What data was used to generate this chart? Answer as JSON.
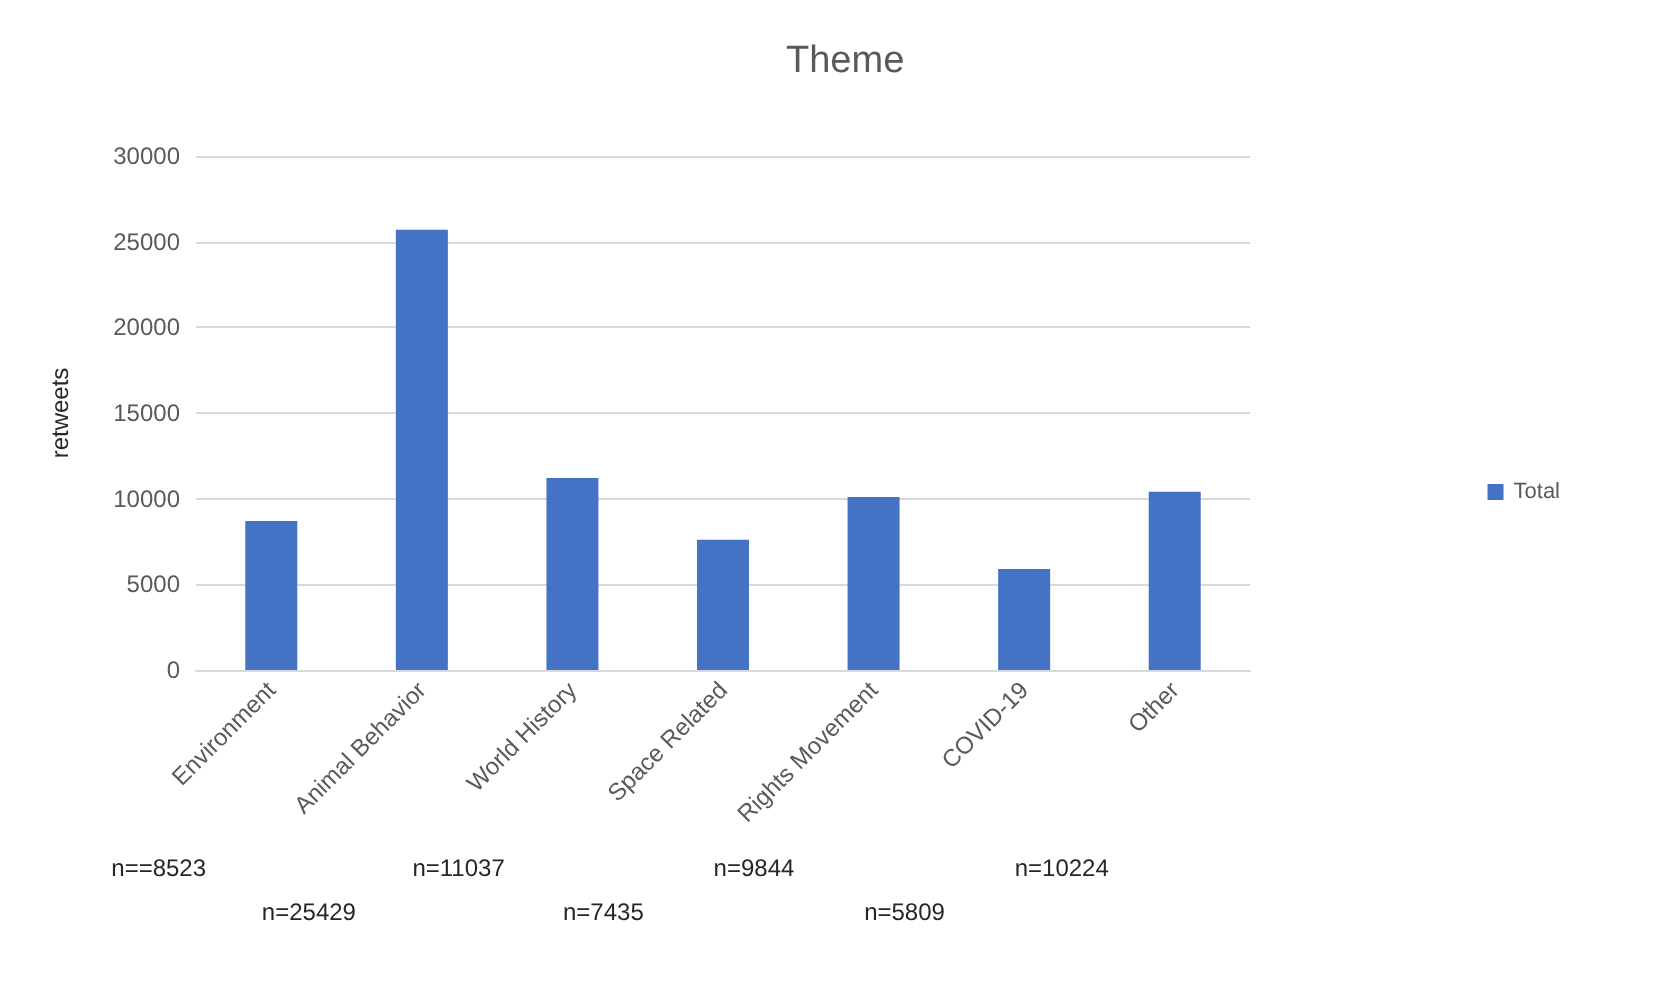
{
  "chart_data": {
    "type": "bar",
    "title": "Theme",
    "ylabel": "retweets",
    "categories": [
      "Environment",
      "Animal Behavior",
      "World History",
      "Space Related",
      "Rights Movement",
      "COVID-19",
      "Other"
    ],
    "series": [
      {
        "name": "Total",
        "color": "#4472c4",
        "values": [
          8700,
          25700,
          11200,
          7600,
          10100,
          5900,
          10400
        ]
      }
    ],
    "ylim": [
      0,
      30000
    ],
    "yticks": [
      0,
      5000,
      10000,
      15000,
      20000,
      25000,
      30000
    ],
    "grid": "y",
    "legend": "right",
    "annotations": [
      "n==8523",
      "n=25429",
      "n=11037",
      "n=7435",
      "n=9844",
      "n=5809",
      "n=10224"
    ]
  }
}
